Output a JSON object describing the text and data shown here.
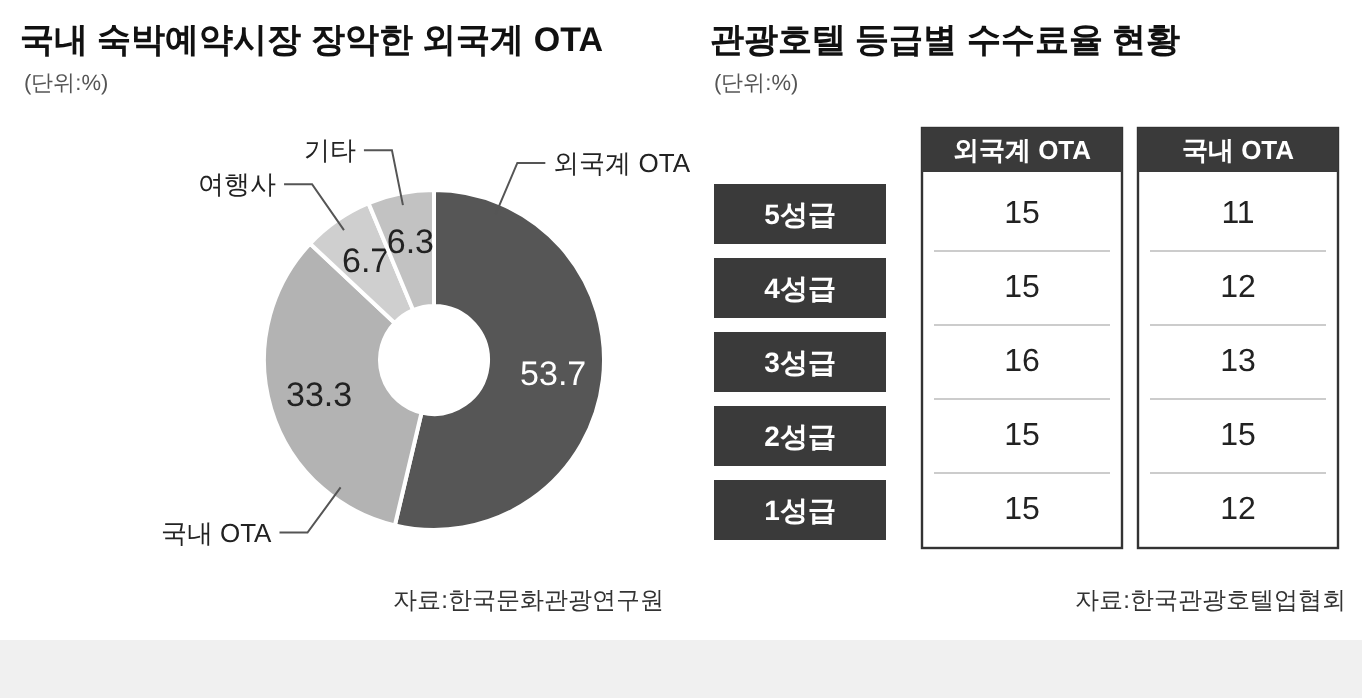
{
  "chart_data": [
    {
      "type": "donut",
      "title": "국내 숙박예약시장 장악한 외국계 OTA",
      "subtitle": "(단위:%)",
      "categories": [
        "외국계 OTA",
        "국내 OTA",
        "여행사",
        "기타"
      ],
      "values": [
        53.7,
        33.3,
        6.7,
        6.3
      ],
      "colors": [
        "#565656",
        "#b3b3b3",
        "#cfcfcf",
        "#c2c2c2"
      ],
      "data_labels": true,
      "annotations": [
        "자료:한국문화관광연구원"
      ]
    },
    {
      "type": "heatmap",
      "title": "관광호텔 등급별 수수료율 현황",
      "subtitle": "(단위:%)",
      "categories": [
        "외국계 OTA",
        "국내 OTA"
      ],
      "y_categories": [
        "5성급",
        "4성급",
        "3성급",
        "2성급",
        "1성급"
      ],
      "cells": [
        [
          15,
          11
        ],
        [
          15,
          12
        ],
        [
          16,
          13
        ],
        [
          15,
          15
        ],
        [
          15,
          12
        ]
      ],
      "data_labels": true,
      "annotations": [
        "자료:한국관광호텔업협회"
      ]
    }
  ]
}
